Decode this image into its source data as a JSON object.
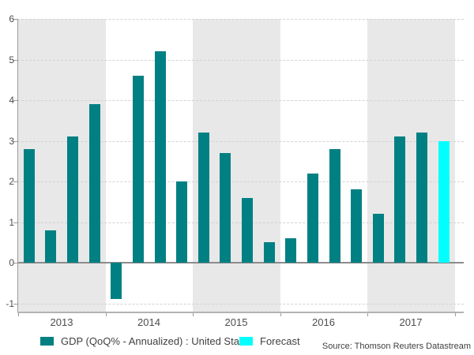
{
  "chart_data": {
    "type": "bar",
    "title": "",
    "xlabel": "",
    "ylabel": "",
    "ylim": [
      -1,
      6
    ],
    "y_ticks": [
      -1,
      0,
      1,
      2,
      3,
      4,
      5,
      6
    ],
    "year_labels": [
      "2013",
      "2014",
      "2015",
      "2016",
      "2017"
    ],
    "categories": [
      "2013 Q1",
      "2013 Q2",
      "2013 Q3",
      "2013 Q4",
      "2014 Q1",
      "2014 Q2",
      "2014 Q3",
      "2014 Q4",
      "2015 Q1",
      "2015 Q2",
      "2015 Q3",
      "2015 Q4",
      "2016 Q1",
      "2016 Q2",
      "2016 Q3",
      "2016 Q4",
      "2017 Q1",
      "2017 Q2",
      "2017 Q3",
      "2017 Q4"
    ],
    "values": [
      2.8,
      0.8,
      3.1,
      3.9,
      -0.9,
      4.6,
      5.2,
      2.0,
      3.2,
      2.7,
      1.6,
      0.5,
      0.6,
      2.2,
      2.8,
      1.8,
      1.2,
      3.1,
      3.2,
      3.0
    ],
    "forecast_index": 19,
    "series_color": "#008083",
    "forecast_color": "#00FFFF",
    "band_color": "#e8e8e8",
    "grid": true,
    "legend_position": "bottom"
  },
  "legend": {
    "items": [
      {
        "label": "GDP (QoQ% - Annualized) : United States",
        "color": "#008083"
      },
      {
        "label": "Forecast",
        "color": "#00FFFF"
      }
    ]
  },
  "footer": {
    "source": "Source: Thomson Reuters Datastream"
  }
}
